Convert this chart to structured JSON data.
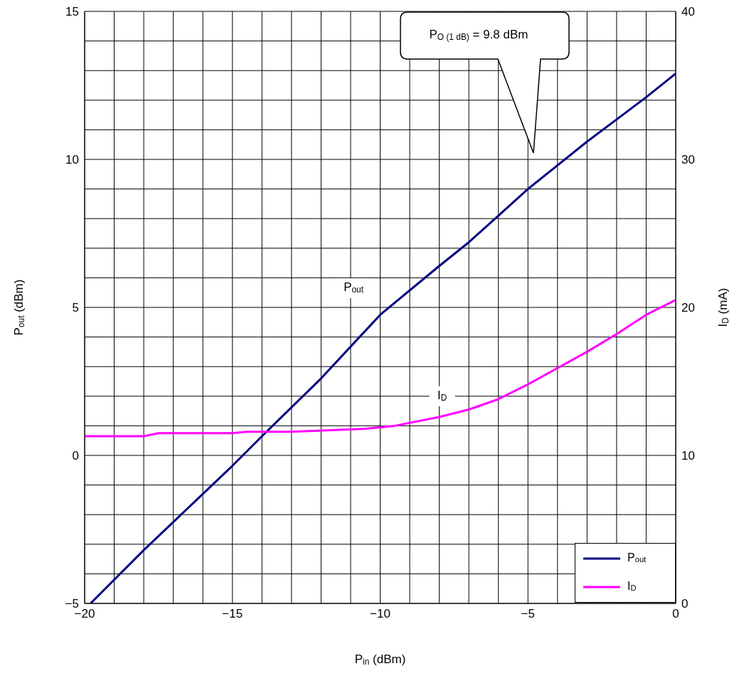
{
  "chart_data": {
    "type": "line",
    "xlabel": "P$_{in}$ (dBm)",
    "ylabel": "P$_{out}$ (dBm)",
    "y2label": "I$_{D}$ (mA)",
    "xlim": [
      -20,
      0
    ],
    "xticks": [
      -20,
      {
        "value": -19,
        "label": null
      },
      {
        "value": -18,
        "label": null
      },
      {
        "value": -17,
        "label": null
      },
      {
        "value": -16,
        "label": null
      },
      -15,
      {
        "value": -14,
        "label": null
      },
      {
        "value": -13,
        "label": null
      },
      {
        "value": -12,
        "label": null
      },
      {
        "value": -11,
        "label": null
      },
      -10,
      {
        "value": -9,
        "label": null
      },
      {
        "value": -8,
        "label": null
      },
      {
        "value": -7,
        "label": null
      },
      {
        "value": -6,
        "label": null
      },
      -5,
      {
        "value": -4,
        "label": null
      },
      {
        "value": -3,
        "label": null
      },
      {
        "value": -2,
        "label": null
      },
      {
        "value": -1,
        "label": null
      },
      0
    ],
    "ylim": [
      -5,
      15
    ],
    "yticks": [
      -5,
      {
        "value": -4,
        "label": null
      },
      {
        "value": -3,
        "label": null
      },
      {
        "value": -2,
        "label": null
      },
      {
        "value": -1,
        "label": null
      },
      0,
      {
        "value": 1,
        "label": null
      },
      {
        "value": 2,
        "label": null
      },
      {
        "value": 3,
        "label": null
      },
      {
        "value": 4,
        "label": null
      },
      5,
      {
        "value": 6,
        "label": null
      },
      {
        "value": 7,
        "label": null
      },
      {
        "value": 8,
        "label": null
      },
      {
        "value": 9,
        "label": null
      },
      10,
      {
        "value": 11,
        "label": null
      },
      {
        "value": 12,
        "label": null
      },
      {
        "value": 13,
        "label": null
      },
      {
        "value": 14,
        "label": null
      },
      15
    ],
    "y2lim": [
      0,
      40
    ],
    "y2ticks": [
      0,
      10,
      20,
      30,
      40
    ],
    "grid": true,
    "legend": "bottom right",
    "series": [
      {
        "name": "P$_{out}$",
        "color": "#000080",
        "x": [
          -19.8,
          -18,
          -16,
          -15,
          -14,
          -12,
          -10,
          -8,
          -7,
          -6,
          -5,
          -4,
          -3,
          -2,
          -1,
          0
        ],
        "values": [
          -5,
          -3.2,
          -1.3,
          -0.35,
          0.65,
          2.6,
          4.75,
          6.4,
          7.2,
          8.1,
          9.0,
          9.8,
          10.6,
          11.35,
          12.1,
          12.9
        ]
      },
      {
        "name": "I$_{D}$",
        "color": "#ff00ff",
        "axis": "y2",
        "x": [
          -20,
          -18,
          -17.5,
          -15,
          -14.5,
          -13,
          -10.5,
          -9.5,
          -8,
          -7,
          -6,
          -5,
          -4,
          -3,
          -2,
          -1,
          0
        ],
        "values": [
          11.3,
          11.3,
          11.5,
          11.5,
          11.6,
          11.6,
          11.8,
          12.0,
          12.6,
          13.1,
          13.8,
          14.8,
          15.9,
          17.0,
          18.2,
          19.5,
          20.5
        ]
      }
    ],
    "annotations": [
      "P$_{O (1 dB)}$ = 9.8 dBm",
      {
        "text": "P$_{out}$",
        "x": -10.9,
        "y": 5.65
      },
      {
        "text": "I$_{D}$",
        "x": -7.9,
        "y": 2.0
      }
    ]
  }
}
